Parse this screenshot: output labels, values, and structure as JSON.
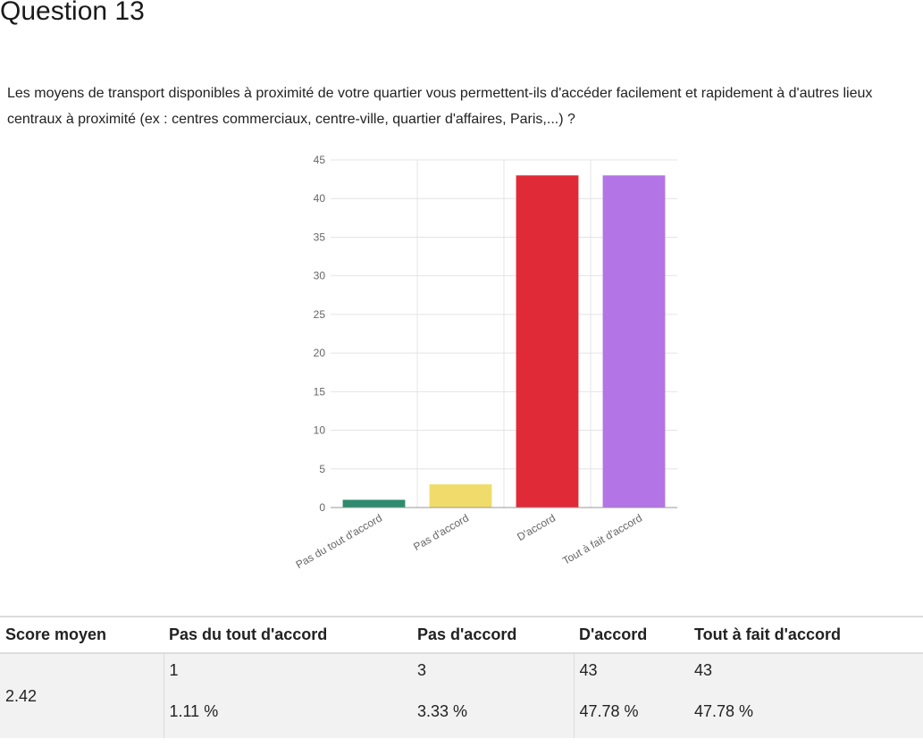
{
  "page": {
    "title": "Question 13",
    "question": "Les moyens de transport disponibles à proximité de votre quartier vous permettent-ils d'accéder facilement et rapidement à d'autres lieux centraux à proximité (ex : centres commerciaux, centre-ville, quartier d'affaires, Paris,...) ?"
  },
  "chart_data": {
    "type": "bar",
    "categories": [
      "Pas du tout d'accord",
      "Pas d'accord",
      "D'accord",
      "Tout à fait d'accord"
    ],
    "values": [
      1,
      3,
      43,
      43
    ],
    "colors": [
      "#2e8b6e",
      "#f0dc6a",
      "#e02a37",
      "#b374e6"
    ],
    "ylim": [
      0,
      45
    ],
    "yticks": [
      0,
      5,
      10,
      15,
      20,
      25,
      30,
      35,
      40,
      45
    ],
    "grid": true,
    "legend": "none"
  },
  "table": {
    "headers": [
      "Score moyen",
      "Pas du tout d'accord",
      "Pas d'accord",
      "D'accord",
      "Tout à fait d'accord"
    ],
    "score": "2.42",
    "counts": [
      "1",
      "3",
      "43",
      "43"
    ],
    "percents": [
      "1.11 %",
      "3.33 %",
      "47.78 %",
      "47.78 %"
    ]
  }
}
